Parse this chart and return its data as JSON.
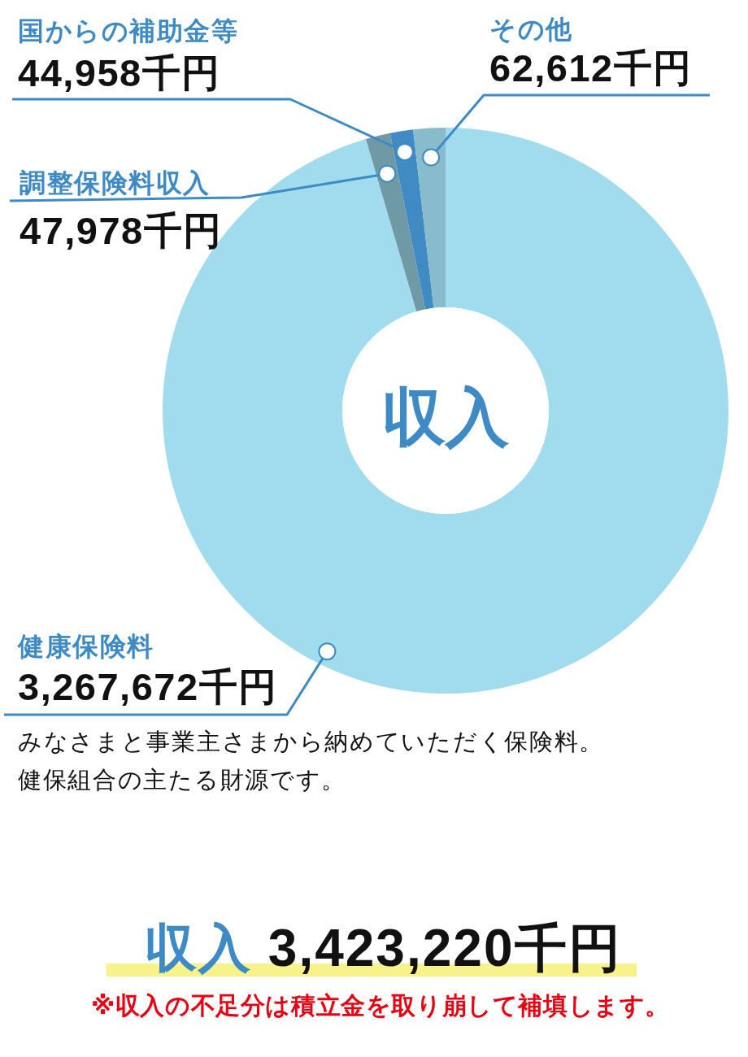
{
  "chart_data": {
    "type": "donut",
    "title": "収入",
    "categories": [
      "健康保険料",
      "調整保険料収入",
      "国からの補助金等",
      "その他"
    ],
    "values": [
      3267672,
      47978,
      44958,
      62612
    ],
    "colors": [
      "#a1dbee",
      "#6f9aa5",
      "#418bc5",
      "#88bccd"
    ],
    "value_labels": [
      "3,267,672千円",
      "47,978千円",
      "44,958千円",
      "62,612千円"
    ],
    "annotations": [
      "みなさまと事業主さまから納めていただく保険料。健保組合の主たる財源です。",
      "収入 3,423,220千円",
      "※収入の不足分は積立金を取り崩して補填します。"
    ]
  }
}
